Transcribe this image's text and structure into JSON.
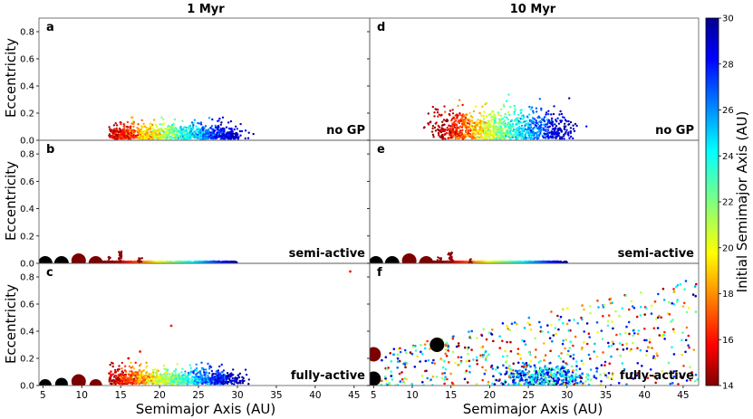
{
  "figure": {
    "column_titles": [
      "1 Myr",
      "10 Myr"
    ],
    "x_label": "Semimajor Axis (AU)",
    "y_label": "Eccentricity",
    "colorbar_label": "Initial Semimajor Axis (AU)"
  },
  "chart_data": [
    {
      "panel": "a",
      "type": "scatter",
      "time": "1 Myr",
      "label": "no GP",
      "xlim": [
        4.5,
        47
      ],
      "ylim": [
        0,
        0.9
      ],
      "x_ticks": [
        5,
        10,
        15,
        20,
        25,
        30,
        35,
        40,
        45
      ],
      "y_ticks": [
        0.0,
        0.2,
        0.4,
        0.6,
        0.8
      ],
      "planets": [],
      "clouds": [
        {
          "kind": "band",
          "x_min": 13.5,
          "x_max": 33,
          "e_max": 0.12,
          "count": 1100,
          "note": "nearly circular belt"
        }
      ]
    },
    {
      "panel": "b",
      "type": "scatter",
      "time": "1 Myr",
      "label": "semi-active",
      "xlim": [
        4.5,
        47
      ],
      "ylim": [
        0,
        0.9
      ],
      "x_ticks": [
        5,
        10,
        15,
        20,
        25,
        30,
        35,
        40,
        45
      ],
      "y_ticks": [
        0.0,
        0.2,
        0.4,
        0.6,
        0.8
      ],
      "planets": [
        {
          "a": 5.3,
          "e": 0.0,
          "color": "#000000",
          "size": 8
        },
        {
          "a": 7.4,
          "e": 0.0,
          "color": "#000000",
          "size": 8
        },
        {
          "a": 9.6,
          "e": 0.02,
          "color": "#7b0000",
          "size": 8
        },
        {
          "a": 11.8,
          "e": 0.0,
          "color": "#7b0000",
          "size": 8
        }
      ],
      "clouds": [
        {
          "kind": "flat",
          "x_min": 12.5,
          "x_max": 30,
          "e_max": 0.015,
          "count": 900
        },
        {
          "kind": "spike",
          "x": 13.5,
          "e_max": 0.05,
          "count": 12
        },
        {
          "kind": "spike",
          "x": 15.0,
          "e_max": 0.09,
          "count": 25
        },
        {
          "kind": "spike",
          "x": 17.5,
          "e_max": 0.04,
          "count": 12
        }
      ]
    },
    {
      "panel": "c",
      "type": "scatter",
      "time": "1 Myr",
      "label": "fully-active",
      "xlim": [
        4.5,
        47
      ],
      "ylim": [
        0,
        0.9
      ],
      "x_ticks": [
        5,
        10,
        15,
        20,
        25,
        30,
        35,
        40,
        45
      ],
      "y_ticks": [
        0.0,
        0.2,
        0.4,
        0.6,
        0.8
      ],
      "planets": [
        {
          "a": 5.3,
          "e": 0.0,
          "color": "#000000",
          "size": 7
        },
        {
          "a": 7.4,
          "e": 0.01,
          "color": "#000000",
          "size": 7
        },
        {
          "a": 9.6,
          "e": 0.03,
          "color": "#7b0000",
          "size": 8
        },
        {
          "a": 11.8,
          "e": 0.0,
          "color": "#7b0000",
          "size": 7
        }
      ],
      "clouds": [
        {
          "kind": "band",
          "x_min": 13.5,
          "x_max": 33,
          "e_max": 0.12,
          "count": 1100,
          "boost": true
        },
        {
          "kind": "points",
          "pts": [
            [
              44.5,
              0.84,
              16
            ],
            [
              21.5,
              0.44,
              16
            ],
            [
              17.5,
              0.25,
              16
            ],
            [
              16.0,
              0.2,
              15
            ]
          ]
        }
      ]
    },
    {
      "panel": "d",
      "type": "scatter",
      "time": "10 Myr",
      "label": "no GP",
      "xlim": [
        4.5,
        47
      ],
      "ylim": [
        0,
        0.9
      ],
      "x_ticks": [
        5,
        10,
        15,
        20,
        25,
        30,
        35,
        40,
        45
      ],
      "y_ticks": [
        0.0,
        0.2,
        0.4,
        0.6,
        0.8
      ],
      "planets": [],
      "clouds": [
        {
          "kind": "band",
          "x_min": 11.5,
          "x_max": 37,
          "e_max": 0.24,
          "count": 1100
        }
      ]
    },
    {
      "panel": "e",
      "type": "scatter",
      "time": "10 Myr",
      "label": "semi-active",
      "xlim": [
        4.5,
        47
      ],
      "ylim": [
        0,
        0.9
      ],
      "x_ticks": [
        5,
        10,
        15,
        20,
        25,
        30,
        35,
        40,
        45
      ],
      "y_ticks": [
        0.0,
        0.2,
        0.4,
        0.6,
        0.8
      ],
      "planets": [
        {
          "a": 5.3,
          "e": 0.0,
          "color": "#000000",
          "size": 8
        },
        {
          "a": 7.4,
          "e": 0.0,
          "color": "#000000",
          "size": 8
        },
        {
          "a": 9.6,
          "e": 0.02,
          "color": "#7b0000",
          "size": 8
        },
        {
          "a": 11.8,
          "e": 0.0,
          "color": "#7b0000",
          "size": 8
        }
      ],
      "clouds": [
        {
          "kind": "flat",
          "x_min": 12.5,
          "x_max": 30,
          "e_max": 0.015,
          "count": 900
        },
        {
          "kind": "spike",
          "x": 13.5,
          "e_max": 0.05,
          "count": 12
        },
        {
          "kind": "spike",
          "x": 15.0,
          "e_max": 0.09,
          "count": 25
        },
        {
          "kind": "spike",
          "x": 17.5,
          "e_max": 0.04,
          "count": 12
        }
      ]
    },
    {
      "panel": "f",
      "type": "scatter",
      "time": "10 Myr",
      "label": "fully-active",
      "xlim": [
        4.5,
        47
      ],
      "ylim": [
        0,
        0.9
      ],
      "x_ticks": [
        5,
        10,
        15,
        20,
        25,
        30,
        35,
        40,
        45
      ],
      "y_ticks": [
        0.0,
        0.2,
        0.4,
        0.6,
        0.8
      ],
      "planets": [
        {
          "a": 5.0,
          "e": 0.23,
          "color": "#7b0000",
          "size": 8
        },
        {
          "a": 5.0,
          "e": 0.05,
          "color": "#000000",
          "size": 8
        },
        {
          "a": 13.2,
          "e": 0.3,
          "color": "#000000",
          "size": 8
        }
      ],
      "clouds": [
        {
          "kind": "cluster",
          "x_c": 27.5,
          "e_c": 0.06,
          "sx": 3.0,
          "se": 0.05,
          "count": 380,
          "cmin": 22,
          "cmax": 30
        },
        {
          "kind": "spread",
          "x_min": 6,
          "x_max": 47,
          "count": 520
        }
      ]
    }
  ],
  "colorbar": {
    "min": 14,
    "max": 30,
    "ticks": [
      14,
      16,
      18,
      20,
      22,
      24,
      26,
      28,
      30
    ],
    "colormap": "jet"
  }
}
